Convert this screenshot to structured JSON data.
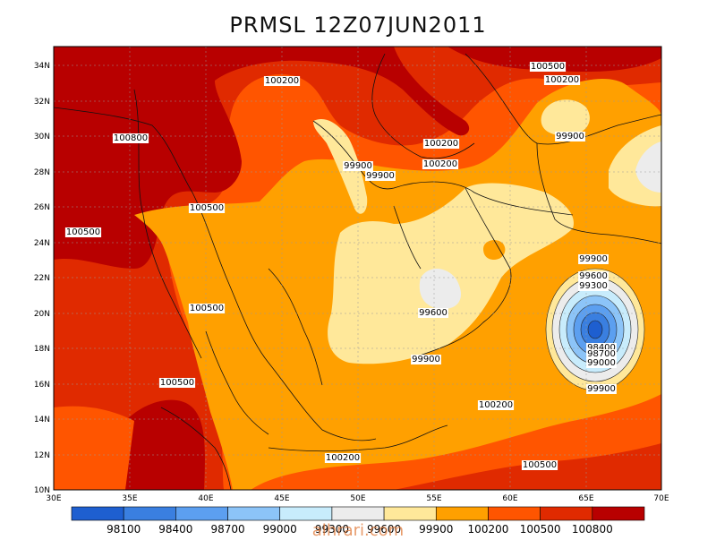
{
  "title": "PRMSL 12Z07JUN2011",
  "watermark": "alhrari.com",
  "lat_labels": [
    "34N",
    "32N",
    "30N",
    "28N",
    "26N",
    "24N",
    "22N",
    "20N",
    "18N",
    "16N",
    "14N",
    "12N",
    "10N"
  ],
  "lon_labels": [
    "30E",
    "35E",
    "40E",
    "45E",
    "50E",
    "55E",
    "60E",
    "65E",
    "70E"
  ],
  "contour_labels": [
    {
      "text": "100500",
      "name": "label-100500-ne"
    },
    {
      "text": "100200",
      "name": "label-100200-ne"
    },
    {
      "text": "100200",
      "name": "label-100200-north"
    },
    {
      "text": "100800",
      "name": "label-100800-west"
    },
    {
      "text": "100500",
      "name": "label-100500-center-north"
    },
    {
      "text": "100200",
      "name": "label-100200-center-north"
    },
    {
      "text": "99900",
      "name": "label-99900-iran"
    },
    {
      "text": "99900",
      "name": "label-99900-iraq-1"
    },
    {
      "text": "99900",
      "name": "label-99900-iraq-2"
    },
    {
      "text": "100500",
      "name": "label-100500-egypt"
    },
    {
      "text": "100500",
      "name": "label-100500-west-edge"
    },
    {
      "text": "99600",
      "name": "label-99600-arabia"
    },
    {
      "text": "100200",
      "name": "label-100200-redsea"
    },
    {
      "text": "99900",
      "name": "label-99900-south-arabia"
    },
    {
      "text": "100500",
      "name": "label-100500-ethiopia"
    },
    {
      "text": "100200",
      "name": "label-100200-arabian-sea"
    },
    {
      "text": "100200",
      "name": "label-100200-gulf-aden"
    },
    {
      "text": "100500",
      "name": "label-100500-south"
    },
    {
      "text": "99900",
      "name": "label-99900-low-outer"
    },
    {
      "text": "99600",
      "name": "label-99600-low"
    },
    {
      "text": "99300",
      "name": "label-99300-low"
    },
    {
      "text": "98400",
      "name": "label-98400-low"
    },
    {
      "text": "98700",
      "name": "label-98700-low"
    },
    {
      "text": "99000",
      "name": "label-99000-low"
    },
    {
      "text": "99900",
      "name": "label-99900-low-south"
    }
  ],
  "colorbar": {
    "labels": [
      "98100",
      "98400",
      "98700",
      "99000",
      "99300",
      "99600",
      "99900",
      "100200",
      "100500",
      "100800"
    ],
    "colors": [
      "#1e5fd0",
      "#3a7fe0",
      "#5c9ff0",
      "#8cc4f8",
      "#c8ecfc",
      "#ececec",
      "#ffe89a",
      "#ffa000",
      "#ff5500",
      "#e02a00",
      "#b80000"
    ]
  },
  "colors": {
    "c_high": "#b80000",
    "c_100500": "#e02a00",
    "c_100200": "#ff5500",
    "c_99900": "#ffa000",
    "c_99600": "#ffe89a",
    "c_99300": "#ececec",
    "c_99000": "#c8ecfc",
    "c_98700": "#8cc4f8",
    "c_98400": "#5c9ff0",
    "c_98100": "#3a7fe0",
    "c_low": "#1e5fd0"
  }
}
